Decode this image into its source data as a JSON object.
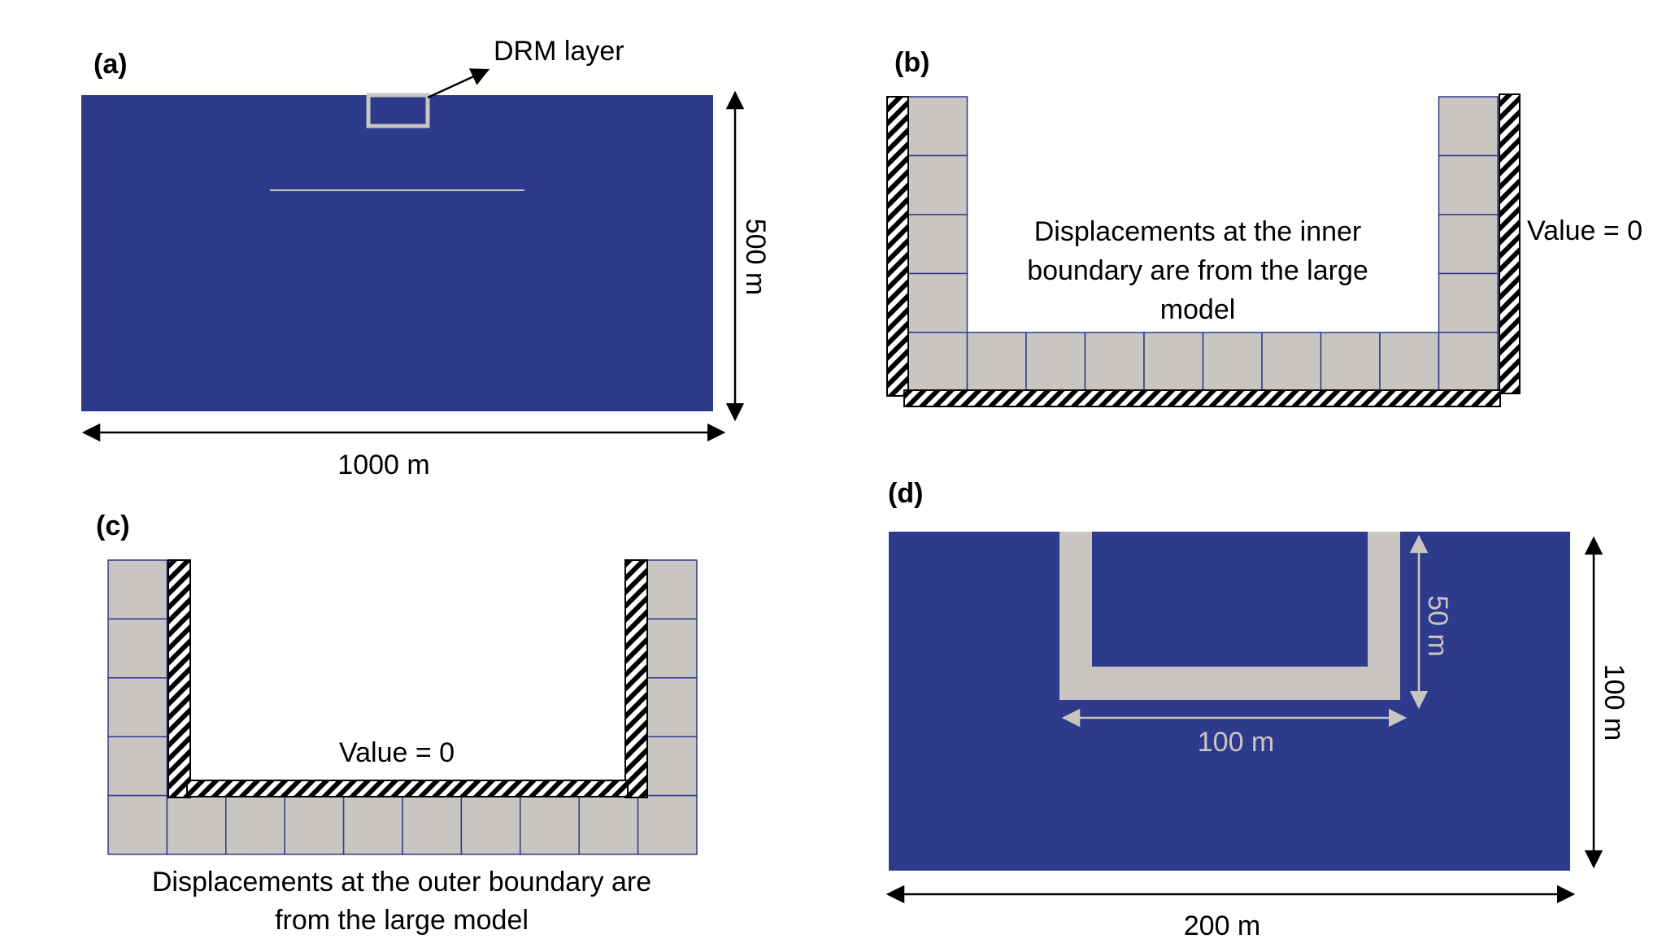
{
  "panels": {
    "a": {
      "label": "(a)",
      "callout": "DRM layer",
      "width_label": "1000 m",
      "height_label": "500 m"
    },
    "b": {
      "label": "(b)",
      "text_lines": [
        "Displacements at the inner",
        "boundary are from the large",
        "model"
      ],
      "value_label": "Value = 0"
    },
    "c": {
      "label": "(c)",
      "value_label": "Value = 0",
      "text_lines": [
        "Displacements at the outer boundary are",
        "from the large model"
      ]
    },
    "d": {
      "label": "(d)",
      "inner_width_label": "100 m",
      "inner_depth_label": "50 m",
      "width_label": "200 m",
      "height_label": "100 m"
    }
  },
  "colors": {
    "domain": "#2e3a8c",
    "drm": "#c9c6c1",
    "grid_line": "#2e3a8c",
    "hatch": "#000000"
  }
}
